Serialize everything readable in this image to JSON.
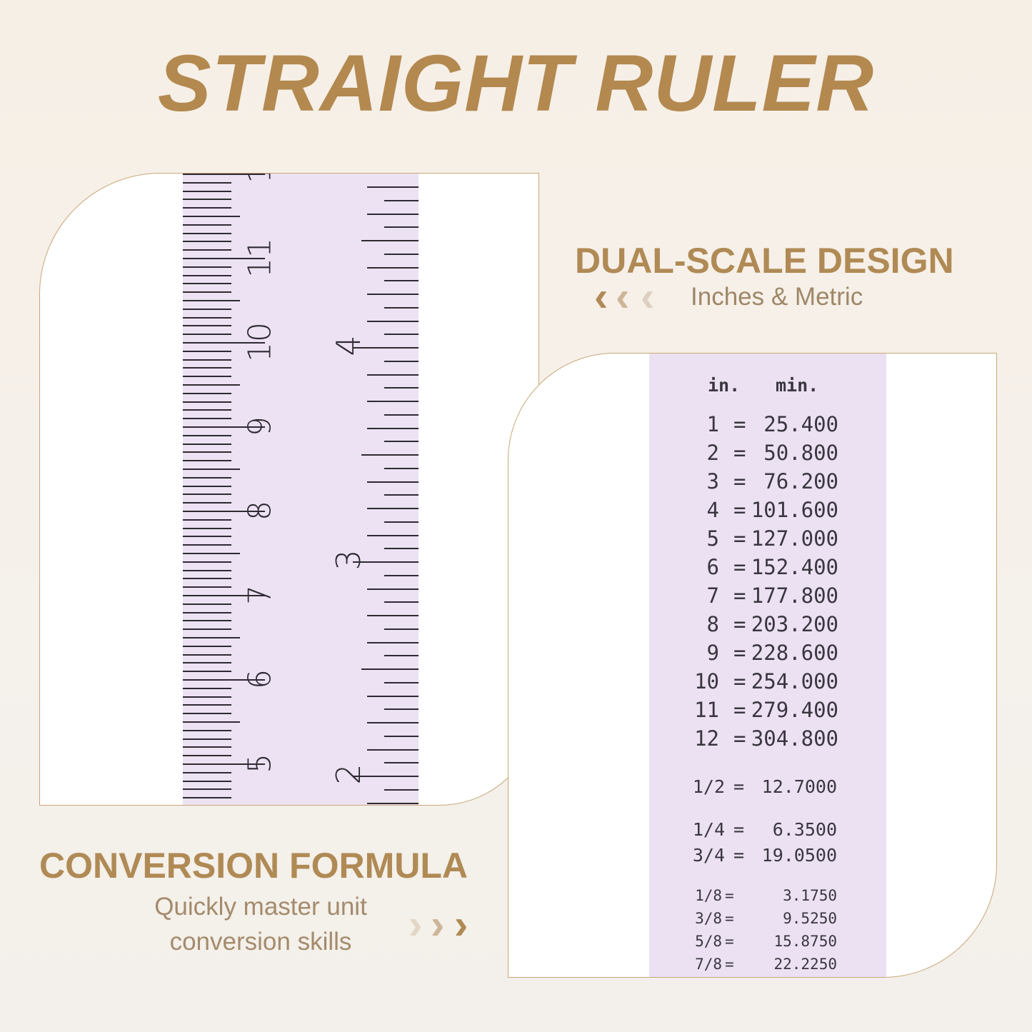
{
  "title": "STRAIGHT RULER",
  "dual": {
    "heading": "DUAL-SCALE DESIGN",
    "subtitle": "Inches & Metric",
    "chevron_icons": [
      "chevron-left",
      "chevron-left",
      "chevron-left"
    ]
  },
  "conversion": {
    "heading": "CONVERSION FORMULA",
    "line1": "Quickly master unit",
    "line2": "conversion skills",
    "chevron_icons": [
      "chevron-right",
      "chevron-right",
      "chevron-right"
    ]
  },
  "colors": {
    "gold": "#b08a55",
    "ruler": "#ece2f3"
  },
  "ruler": {
    "cm_labels": [
      "5",
      "6",
      "7",
      "8",
      "9",
      "10",
      "11",
      "1"
    ],
    "inch_labels": [
      "2",
      "3",
      "4"
    ]
  },
  "table": {
    "header": {
      "in": "in.",
      "mm": "min."
    },
    "rows": [
      {
        "in": "1",
        "eq": "=",
        "mm": "25.400"
      },
      {
        "in": "2",
        "eq": "=",
        "mm": "50.800"
      },
      {
        "in": "3",
        "eq": "=",
        "mm": "76.200"
      },
      {
        "in": "4",
        "eq": "=",
        "mm": "101.600"
      },
      {
        "in": "5",
        "eq": "=",
        "mm": "127.000"
      },
      {
        "in": "6",
        "eq": "=",
        "mm": "152.400"
      },
      {
        "in": "7",
        "eq": "=",
        "mm": "177.800"
      },
      {
        "in": "8",
        "eq": "=",
        "mm": "203.200"
      },
      {
        "in": "9",
        "eq": "=",
        "mm": "228.600"
      },
      {
        "in": "10",
        "eq": "=",
        "mm": "254.000"
      },
      {
        "in": "11",
        "eq": "=",
        "mm": "279.400"
      },
      {
        "in": "12",
        "eq": "=",
        "mm": "304.800"
      }
    ],
    "fractions": [
      {
        "in": "1/2",
        "eq": "=",
        "mm": "12.7000"
      },
      {
        "in": "1/4",
        "eq": "=",
        "mm": "6.3500"
      },
      {
        "in": "3/4",
        "eq": "=",
        "mm": "19.0500"
      },
      {
        "in": "1/8",
        "eq": "=",
        "mm": "3.1750"
      },
      {
        "in": "3/8",
        "eq": "=",
        "mm": "9.5250"
      },
      {
        "in": "5/8",
        "eq": "=",
        "mm": "15.8750"
      },
      {
        "in": "7/8",
        "eq": "=",
        "mm": "22.2250"
      }
    ]
  }
}
